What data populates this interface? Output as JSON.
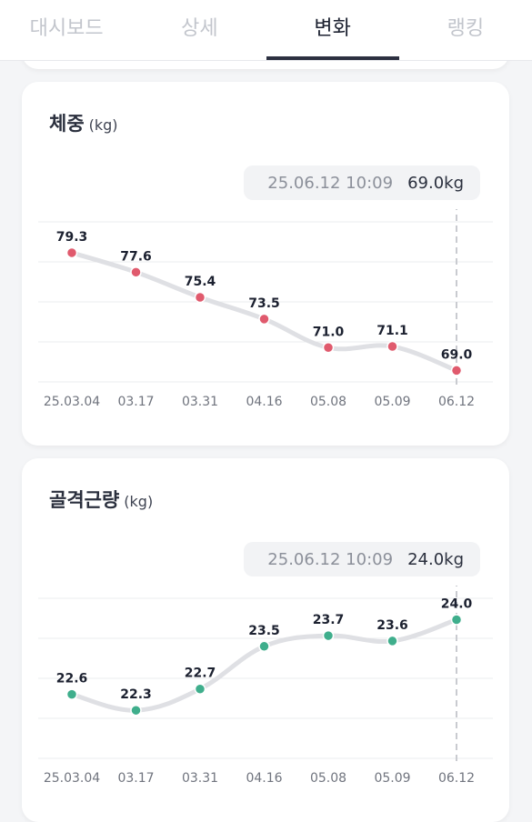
{
  "tabs": [
    {
      "label": "대시보드",
      "active": false
    },
    {
      "label": "상세",
      "active": false
    },
    {
      "label": "변화",
      "active": true
    },
    {
      "label": "랭킹",
      "active": false
    }
  ],
  "cards": [
    {
      "key": "weight",
      "title": "체중",
      "unit": "(kg)",
      "tooltip": {
        "timestamp": "25.06.12 10:09",
        "value": "69.0kg"
      },
      "chart_data": {
        "type": "line",
        "categories": [
          "25.03.04",
          "03.17",
          "03.31",
          "04.16",
          "05.08",
          "05.09",
          "06.12"
        ],
        "values": [
          79.3,
          77.6,
          75.4,
          73.5,
          71.0,
          71.1,
          69.0
        ],
        "labels": [
          "79.3",
          "77.6",
          "75.4",
          "73.5",
          "71.0",
          "71.1",
          "69.0"
        ],
        "ylim": [
          68,
          82
        ],
        "point_color": "#e05a6d",
        "line_color": "#dfe0e4",
        "grid": true,
        "highlight_index": 6
      }
    },
    {
      "key": "muscle",
      "title": "골격근량",
      "unit": "(kg)",
      "tooltip": {
        "timestamp": "25.06.12 10:09",
        "value": "24.0kg"
      },
      "chart_data": {
        "type": "line",
        "categories": [
          "25.03.04",
          "03.17",
          "03.31",
          "04.16",
          "05.08",
          "05.09",
          "06.12"
        ],
        "values": [
          22.6,
          22.3,
          22.7,
          23.5,
          23.7,
          23.6,
          24.0
        ],
        "labels": [
          "22.6",
          "22.3",
          "22.7",
          "23.5",
          "23.7",
          "23.6",
          "24.0"
        ],
        "ylim": [
          21.4,
          24.4
        ],
        "point_color": "#3fae8c",
        "line_color": "#dfe0e4",
        "grid": true,
        "highlight_index": 6
      }
    }
  ]
}
